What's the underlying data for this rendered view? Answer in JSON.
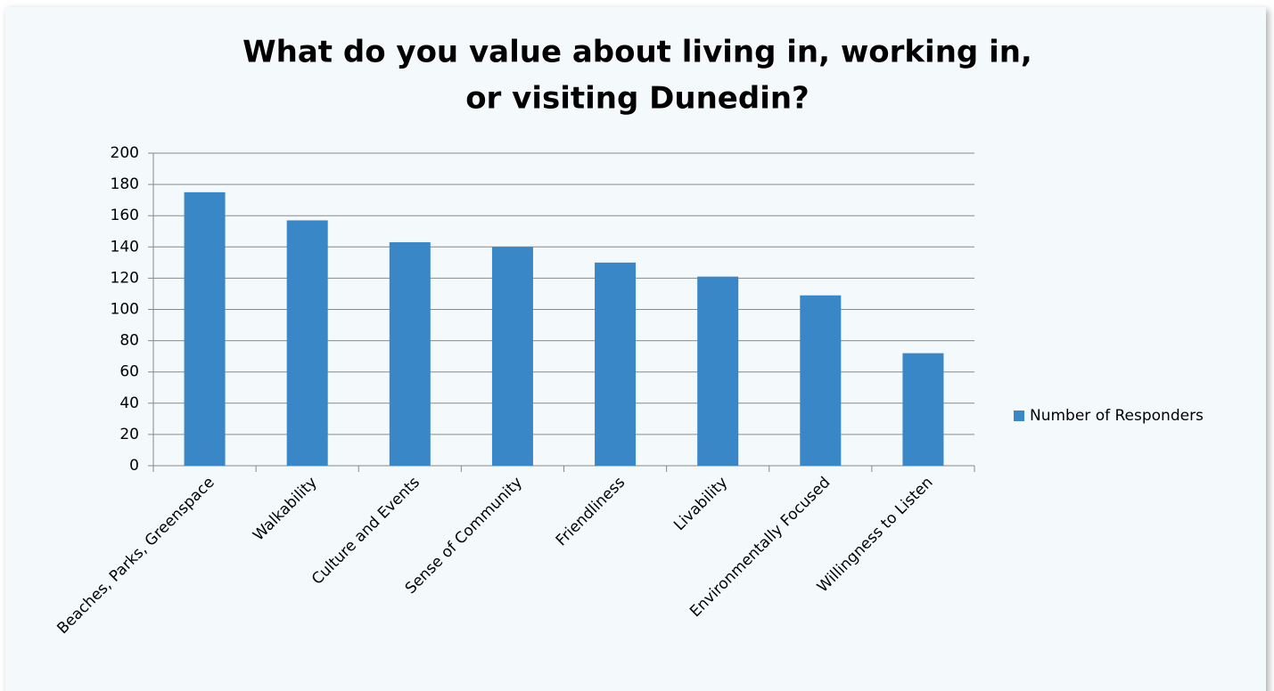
{
  "chart_data": {
    "type": "bar",
    "title": [
      "What do you value about living in, working in,",
      "or visiting Dunedin?"
    ],
    "categories": [
      "Beaches, Parks, Greenspace",
      "Walkability",
      "Culture and Events",
      "Sense of Community",
      "Friendliness",
      "Livability",
      "Environmentally Focused",
      "Willingness to Listen"
    ],
    "series": [
      {
        "name": "Number of Responders",
        "color": "#3a87c8",
        "values": [
          175,
          157,
          143,
          140,
          130,
          121,
          109,
          72
        ]
      }
    ],
    "ylim": [
      0,
      200
    ],
    "yticks": [
      0,
      20,
      40,
      60,
      80,
      100,
      120,
      140,
      160,
      180,
      200
    ],
    "grid": true,
    "legend": "right"
  }
}
